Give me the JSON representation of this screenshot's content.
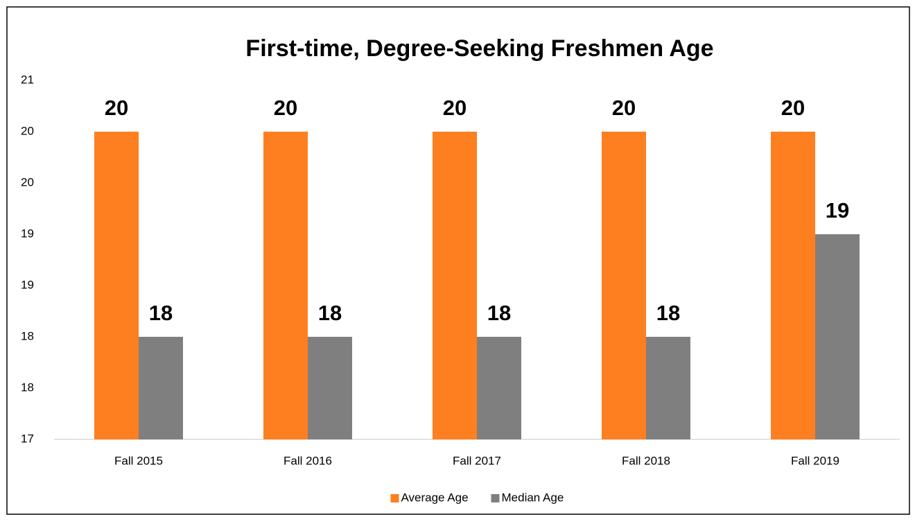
{
  "chart_data": {
    "type": "bar",
    "title": "First-time, Degree-Seeking Freshmen Age",
    "categories": [
      "Fall 2015",
      "Fall 2016",
      "Fall 2017",
      "Fall 2018",
      "Fall 2019"
    ],
    "series": [
      {
        "name": "Average Age",
        "color": "#fd7f20",
        "values": [
          20,
          20,
          20,
          20,
          20
        ]
      },
      {
        "name": "Median Age",
        "color": "#7f7f7f",
        "values": [
          18,
          18,
          18,
          18,
          19
        ]
      }
    ],
    "ylim": [
      17,
      20.5
    ],
    "yticks": [
      17,
      {
        "value": 17.5,
        "label": "18"
      },
      18,
      {
        "value": 18.5,
        "label": "19"
      },
      19,
      {
        "value": 19.5,
        "label": "20"
      },
      20,
      {
        "value": 20.5,
        "label": "21"
      }
    ],
    "grid": false,
    "legend": "bottom"
  }
}
